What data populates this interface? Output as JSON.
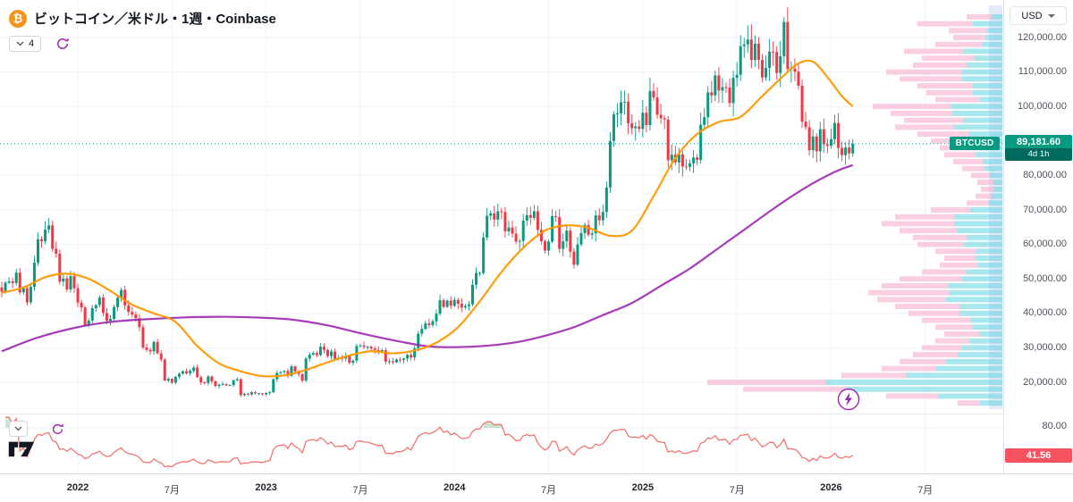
{
  "header": {
    "bitcoin_glyph": "₿",
    "symbol_title": "ビットコイン／米ドル・1週・Coinbase",
    "indicator_count": "4"
  },
  "price_scale": {
    "currency_selector": "USD",
    "ticks": [
      {
        "v": 120,
        "label": "120,000.00"
      },
      {
        "v": 110,
        "label": "110,000.00"
      },
      {
        "v": 100,
        "label": "100,000.00"
      },
      {
        "v": 90,
        "label": "90,000.00"
      },
      {
        "v": 80,
        "label": "80,000.00"
      },
      {
        "v": 70,
        "label": "70,000.00"
      },
      {
        "v": 60,
        "label": "60,000.00"
      },
      {
        "v": 50,
        "label": "50,000.00"
      },
      {
        "v": 40,
        "label": "40,000.00"
      },
      {
        "v": 30,
        "label": "30,000.00"
      },
      {
        "v": 20,
        "label": "20,000.00"
      }
    ],
    "price_badge": {
      "symbol_label": "BTCUSD",
      "price": "89,181.60",
      "countdown": "4d 1h"
    }
  },
  "time_axis": {
    "labels": [
      {
        "text": "2022",
        "week": 21
      },
      {
        "text": "7月",
        "week": 47
      },
      {
        "text": "2023",
        "week": 73
      },
      {
        "text": "7月",
        "week": 99
      },
      {
        "text": "2024",
        "week": 125
      },
      {
        "text": "7月",
        "week": 151
      },
      {
        "text": "2025",
        "week": 177
      },
      {
        "text": "7月",
        "week": 203
      },
      {
        "text": "2026",
        "week": 229
      },
      {
        "text": "7月",
        "week": 255
      }
    ]
  },
  "indicator_pane": {
    "axis_top_label": "80.00",
    "value_badge": "41.56"
  },
  "colors": {
    "up": "#089981",
    "down": "#f23645",
    "ma_fast": "#ff9800",
    "ma_slow": "#9c27b0",
    "price_line": "#089981",
    "badge_green": "#089981",
    "countdown_green": "#016a5c",
    "rsi": "#f27571",
    "rsi_badge": "#f7525f",
    "grid": "#f0f3fa",
    "border": "#e0e3eb",
    "axis_text": "#4f525c",
    "profile_up": "#53d0dd",
    "profile_down": "#f5a8c8",
    "profile_strip": "#ccd5f6",
    "overbought_fill": "rgba(103,183,119,0.35)"
  },
  "chart_data": {
    "type": "candlestick",
    "title": "ビットコイン／米ドル・1週・Coinbase",
    "symbol": "BTCUSD",
    "exchange": "Coinbase",
    "interval": "1週",
    "currency": "USD",
    "unit": "USD thousands",
    "last_price": 89181.6,
    "last_price_label": "89,181.60",
    "bar_countdown": "4d 1h",
    "y_axis": {
      "visible_min_k": 13,
      "visible_max_k": 131,
      "tick_step_k": 10
    },
    "x_axis": {
      "start": "2021-08",
      "end": "2026-02",
      "bars": 236,
      "future_label": "7月 2026"
    },
    "first_open_k": 47.5,
    "weekly_closes_k": [
      46.3,
      48.9,
      49.3,
      48.8,
      51.8,
      46.1,
      47.3,
      43.2,
      47.7,
      54.7,
      61.5,
      60.9,
      64.3,
      65.5,
      58.7,
      57.3,
      49.2,
      50.1,
      46.9,
      50.8,
      47.3,
      43.1,
      41.7,
      36.5,
      37.9,
      41.5,
      42.4,
      44.6,
      40.1,
      37.8,
      38.4,
      41.8,
      44.5,
      46.8,
      42.3,
      40.4,
      39.7,
      38.6,
      36.0,
      30.1,
      29.4,
      29.0,
      31.7,
      28.4,
      26.6,
      20.5,
      21.0,
      19.9,
      21.6,
      22.5,
      23.2,
      22.6,
      23.3,
      24.3,
      21.5,
      20.0,
      19.8,
      21.7,
      20.3,
      18.9,
      19.3,
      19.5,
      19.1,
      19.2,
      20.6,
      20.9,
      16.3,
      16.7,
      16.5,
      17.1,
      16.8,
      16.8,
      16.5,
      16.9,
      17.1,
      20.9,
      22.7,
      23.0,
      23.3,
      21.9,
      24.6,
      23.2,
      22.4,
      20.5,
      26.9,
      28.0,
      28.5,
      27.9,
      30.3,
      29.4,
      27.6,
      28.9,
      26.8,
      27.1,
      26.9,
      27.7,
      25.7,
      26.3,
      30.5,
      30.7,
      30.3,
      30.3,
      29.8,
      29.4,
      29.0,
      29.3,
      26.0,
      26.1,
      25.8,
      26.6,
      26.5,
      26.9,
      28.0,
      27.2,
      29.9,
      34.1,
      35.5,
      37.1,
      36.6,
      37.7,
      39.9,
      43.8,
      41.9,
      43.7,
      42.2,
      43.9,
      42.8,
      41.7,
      42.1,
      42.6,
      48.3,
      51.7,
      51.7,
      62.0,
      68.3,
      69.0,
      67.2,
      69.6,
      69.4,
      63.8,
      64.9,
      63.1,
      60.8,
      61.0,
      66.9,
      68.5,
      67.7,
      69.6,
      64.2,
      60.9,
      58.2,
      60.8,
      68.2,
      67.9,
      58.7,
      60.9,
      64.0,
      57.9,
      54.1,
      60.0,
      63.3,
      65.6,
      62.8,
      63.2,
      68.4,
      67.0,
      69.4,
      76.5,
      90.0,
      97.7,
      98.0,
      101.2,
      101.4,
      95.1,
      93.7,
      94.2,
      93.5,
      98.2,
      94.6,
      104.5,
      102.6,
      97.6,
      96.6,
      96.2,
      84.4,
      86.0,
      83.8,
      86.1,
      82.6,
      82.5,
      83.5,
      85.2,
      84.5,
      94.7,
      96.9,
      104.1,
      103.2,
      109.0,
      104.6,
      105.6,
      105.5,
      101.0,
      108.3,
      109.2,
      117.5,
      118.0,
      119.4,
      113.5,
      118.2,
      113.5,
      108.4,
      111.2,
      115.9,
      115.8,
      109.7,
      114.6,
      124.5,
      110.9,
      111.0,
      110.1,
      106.0,
      95.6,
      94.0,
      87.3,
      91.3,
      87.0,
      93.4,
      89.0,
      88.6,
      90.5,
      95.2,
      88.0,
      85.9,
      88.1,
      86.4,
      89.2
    ],
    "ma_fast": {
      "label": "fast moving average (orange)",
      "anchors": [
        [
          0,
          46
        ],
        [
          6,
          47.5
        ],
        [
          12,
          50.5
        ],
        [
          18,
          51.5
        ],
        [
          24,
          50
        ],
        [
          30,
          46.5
        ],
        [
          36,
          42.5
        ],
        [
          42,
          40
        ],
        [
          48,
          37.5
        ],
        [
          54,
          30.5
        ],
        [
          60,
          25.5
        ],
        [
          66,
          23.2
        ],
        [
          72,
          21.8
        ],
        [
          78,
          22
        ],
        [
          84,
          23.6
        ],
        [
          90,
          25.8
        ],
        [
          96,
          27.8
        ],
        [
          102,
          29
        ],
        [
          108,
          28.4
        ],
        [
          114,
          29.2
        ],
        [
          120,
          31.5
        ],
        [
          126,
          36
        ],
        [
          132,
          43.5
        ],
        [
          138,
          52
        ],
        [
          144,
          59
        ],
        [
          150,
          64
        ],
        [
          156,
          65.5
        ],
        [
          162,
          64.8
        ],
        [
          168,
          62.5
        ],
        [
          174,
          64
        ],
        [
          180,
          74
        ],
        [
          186,
          85
        ],
        [
          192,
          92
        ],
        [
          198,
          95.5
        ],
        [
          204,
          97
        ],
        [
          210,
          103
        ],
        [
          216,
          109
        ],
        [
          220,
          112.5
        ],
        [
          224,
          113
        ],
        [
          228,
          108.5
        ],
        [
          232,
          103
        ],
        [
          235,
          100
        ]
      ]
    },
    "ma_slow": {
      "label": "slow moving average (purple)",
      "anchors": [
        [
          0,
          29
        ],
        [
          10,
          33
        ],
        [
          21,
          36
        ],
        [
          30,
          37.5
        ],
        [
          40,
          38.3
        ],
        [
          50,
          38.8
        ],
        [
          60,
          39
        ],
        [
          70,
          38.8
        ],
        [
          80,
          38.2
        ],
        [
          90,
          36.5
        ],
        [
          100,
          34
        ],
        [
          110,
          31.8
        ],
        [
          118,
          30.4
        ],
        [
          126,
          30.2
        ],
        [
          134,
          30.6
        ],
        [
          142,
          31.6
        ],
        [
          150,
          33.5
        ],
        [
          158,
          36
        ],
        [
          166,
          39.5
        ],
        [
          174,
          43
        ],
        [
          182,
          48
        ],
        [
          190,
          53
        ],
        [
          198,
          59
        ],
        [
          206,
          65
        ],
        [
          214,
          71
        ],
        [
          222,
          76.5
        ],
        [
          230,
          81
        ],
        [
          235,
          83
        ]
      ]
    },
    "rsi": {
      "period": 14,
      "current": 41.56,
      "overbought_level": 80,
      "axis_label": "80.00"
    },
    "volume_profile": {
      "note": "rows: [price_k, width_px, up_volume_fraction]",
      "rows": [
        [
          126,
          40,
          0.3
        ],
        [
          124,
          95,
          0.35
        ],
        [
          122,
          60,
          0.3
        ],
        [
          120,
          55,
          0.35
        ],
        [
          118,
          75,
          0.3
        ],
        [
          116,
          110,
          0.4
        ],
        [
          114,
          90,
          0.35
        ],
        [
          112,
          100,
          0.4
        ],
        [
          110,
          130,
          0.35
        ],
        [
          108,
          115,
          0.4
        ],
        [
          106,
          95,
          0.35
        ],
        [
          104,
          85,
          0.4
        ],
        [
          102,
          75,
          0.35
        ],
        [
          100,
          145,
          0.4
        ],
        [
          98,
          125,
          0.45
        ],
        [
          96,
          110,
          0.4
        ],
        [
          94,
          120,
          0.45
        ],
        [
          92,
          95,
          0.4
        ],
        [
          90,
          80,
          0.45
        ],
        [
          88,
          70,
          0.4
        ],
        [
          86,
          65,
          0.45
        ],
        [
          84,
          55,
          0.4
        ],
        [
          82,
          45,
          0.45
        ],
        [
          80,
          35,
          0.4
        ],
        [
          78,
          28,
          0.35
        ],
        [
          76,
          24,
          0.4
        ],
        [
          74,
          30,
          0.4
        ],
        [
          72,
          40,
          0.4
        ],
        [
          70,
          80,
          0.45
        ],
        [
          68,
          120,
          0.45
        ],
        [
          66,
          135,
          0.4
        ],
        [
          64,
          115,
          0.45
        ],
        [
          62,
          100,
          0.4
        ],
        [
          60,
          95,
          0.45
        ],
        [
          58,
          75,
          0.4
        ],
        [
          56,
          65,
          0.45
        ],
        [
          54,
          70,
          0.4
        ],
        [
          52,
          90,
          0.45
        ],
        [
          50,
          115,
          0.4
        ],
        [
          48,
          135,
          0.45
        ],
        [
          46,
          150,
          0.4
        ],
        [
          44,
          140,
          0.45
        ],
        [
          42,
          120,
          0.4
        ],
        [
          40,
          105,
          0.45
        ],
        [
          38,
          90,
          0.4
        ],
        [
          36,
          75,
          0.45
        ],
        [
          34,
          65,
          0.4
        ],
        [
          32,
          75,
          0.5
        ],
        [
          30,
          90,
          0.5
        ],
        [
          28,
          100,
          0.5
        ],
        [
          26,
          115,
          0.55
        ],
        [
          24,
          135,
          0.55
        ],
        [
          22,
          180,
          0.6
        ],
        [
          20,
          330,
          0.6
        ],
        [
          18,
          290,
          0.6
        ],
        [
          16,
          130,
          0.55
        ],
        [
          14,
          50,
          0.5
        ]
      ]
    }
  }
}
